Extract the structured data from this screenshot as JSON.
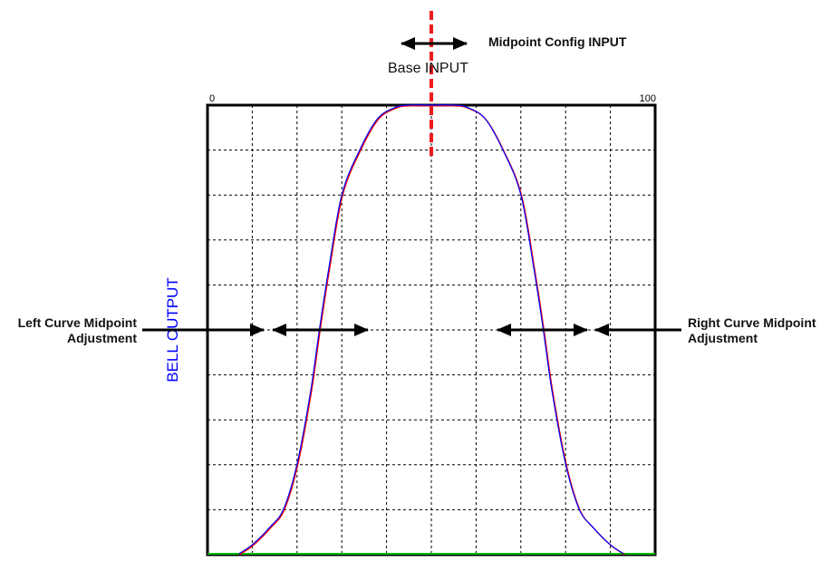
{
  "diagram": {
    "y_axis_label": "BELL OUTPUT",
    "x_tick_min": "0",
    "x_tick_max": "100",
    "base_input_label": "Base INPUT",
    "midpoint_config_label": "Midpoint Config INPUT",
    "left_adjust_label_line1": "Left Curve Midpoint",
    "left_adjust_label_line2": "Adjustment",
    "right_adjust_label_line1": "Right Curve Midpoint",
    "right_adjust_label_line2": "Adjustment",
    "colors": {
      "curve_primary": "#0000ff",
      "curve_secondary": "#ff0000",
      "midpoint_line": "#ee1c1c",
      "baseline": "#00c000",
      "y_label": "#0000ff",
      "grid": "#000000"
    },
    "grid_divisions": 10,
    "x_range": [
      0,
      100
    ],
    "y_range": [
      0,
      1
    ],
    "midpoint_x": 50,
    "curve_points": [
      [
        7,
        0
      ],
      [
        10,
        0.02
      ],
      [
        14,
        0.06
      ],
      [
        17,
        0.1
      ],
      [
        20,
        0.2
      ],
      [
        23,
        0.36
      ],
      [
        25,
        0.5
      ],
      [
        27,
        0.63
      ],
      [
        30,
        0.8
      ],
      [
        34,
        0.9
      ],
      [
        38,
        0.97
      ],
      [
        42,
        0.995
      ],
      [
        45,
        1
      ],
      [
        50,
        1
      ],
      [
        55,
        1
      ],
      [
        58,
        0.995
      ],
      [
        62,
        0.97
      ],
      [
        66,
        0.9
      ],
      [
        70,
        0.8
      ],
      [
        73,
        0.63
      ],
      [
        75,
        0.5
      ],
      [
        77,
        0.36
      ],
      [
        80,
        0.2
      ],
      [
        83,
        0.1
      ],
      [
        86,
        0.06
      ],
      [
        90,
        0.02
      ],
      [
        93,
        0
      ]
    ]
  }
}
